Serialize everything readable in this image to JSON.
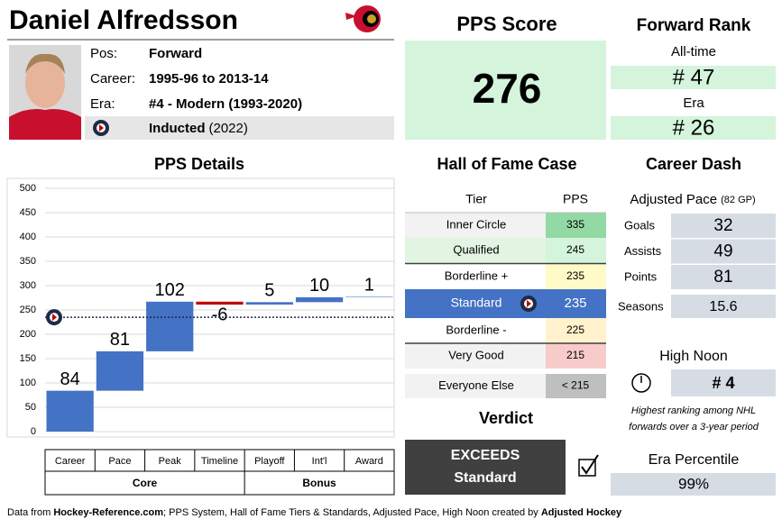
{
  "player": {
    "name": "Daniel Alfredsson",
    "info": [
      {
        "label": "Pos:",
        "value": "Forward"
      },
      {
        "label": "Career:",
        "value": "1995-96 to 2013-14"
      },
      {
        "label": "Era:",
        "value": "#4 - Modern (1993-2020)"
      }
    ],
    "inducted": "Inducted",
    "induction_year": "(2022)"
  },
  "pps_score": {
    "title": "PPS Score",
    "value": 276
  },
  "forward_rank": {
    "title": "Forward Rank",
    "all_time_label": "All-time",
    "all_time": "# 47",
    "era_label": "Era",
    "era": "# 26"
  },
  "chart_data": {
    "type": "waterfall",
    "title": "PPS Details",
    "categories": [
      "Career",
      "Pace",
      "Peak",
      "Timeline",
      "Playoff",
      "Int'l",
      "Award"
    ],
    "values": [
      84,
      81,
      102,
      -6,
      5,
      10,
      1
    ],
    "groups": [
      "Core",
      "Bonus"
    ],
    "color": "#4472c4",
    "negative_color": "#c00000",
    "ylim": [
      0,
      500
    ],
    "yticks": [
      0,
      50,
      100,
      150,
      200,
      250,
      300,
      350,
      400,
      450,
      500
    ],
    "grid": true
  },
  "hall_of_fame_case": {
    "title": "Hall of Fame Case",
    "header": [
      "Tier",
      "PPS"
    ],
    "rows": [
      [
        "Inner Circle",
        335
      ],
      [
        "Qualified",
        245
      ],
      [
        "Borderline +",
        235
      ],
      [
        "Standard",
        235
      ],
      [
        "Borderline -",
        225
      ],
      [
        "Very Good",
        215
      ],
      [
        "Everyone Else",
        "< 215"
      ]
    ]
  },
  "verdict": {
    "title": "Verdict",
    "line1": "EXCEEDS",
    "line2": "Standard"
  },
  "career_dash": {
    "title": "Career Dash",
    "pace_label": "Adjusted Pace",
    "pace_note": "(82 GP)",
    "rows": [
      {
        "label": "Goals",
        "value": 32
      },
      {
        "label": "Assists",
        "value": 49
      },
      {
        "label": "Points",
        "value": 81
      }
    ],
    "seasons_label": "Seasons",
    "seasons": 15.6
  },
  "high_noon": {
    "title": "High Noon",
    "value": "# 4",
    "note1": "Highest ranking among NHL",
    "note2": "forwards over a 3-year period"
  },
  "era_percentile": {
    "title": "Era Percentile",
    "value": "99%"
  },
  "footer": {
    "prefix": "Data from ",
    "source": "Hockey-Reference.com",
    "middle": "; PPS System, Hall of Fame Tiers & Standards, Adjusted Pace, High Noon created by ",
    "creator": "Adjusted Hockey"
  }
}
